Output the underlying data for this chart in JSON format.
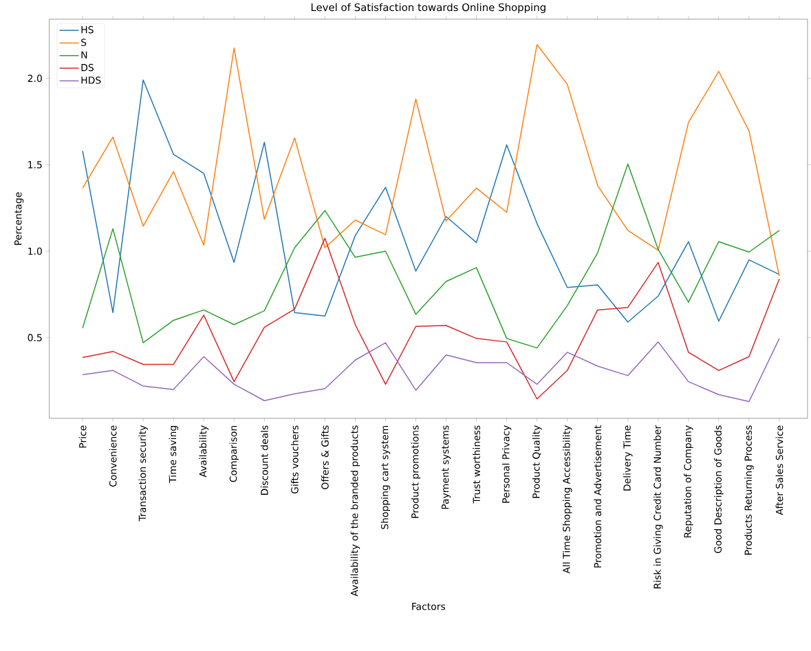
{
  "chart_data": {
    "type": "line",
    "title": "Level of Satisfaction towards Online Shopping",
    "xlabel": "Factors",
    "ylabel": "Percentage",
    "categories": [
      "Price",
      "Convenience",
      "Transaction security",
      "Time saving",
      "Availability",
      "Comparison",
      "Discount deals",
      "Gifts vouchers",
      "Offers & Gifts",
      "Availability of the branded products",
      "Shopping cart system",
      "Product promotions",
      "Payment systems",
      "Trust worthiness",
      "Personal Privacy",
      "Product Quality",
      "All Time Shopping Accessibility",
      "Promotion and Advertisement",
      "Delivery Time",
      "Risk in Giving Credit Card Number",
      "Reputation of Company",
      "Good Description of Goods",
      "Products Returning Process",
      "After Sales Service"
    ],
    "series": [
      {
        "name": "HS",
        "color": "#1f77b4",
        "values": [
          1.58,
          0.645,
          1.99,
          1.56,
          1.45,
          0.935,
          1.63,
          0.645,
          0.625,
          1.09,
          1.37,
          0.885,
          1.2,
          1.05,
          1.615,
          1.16,
          0.79,
          0.805,
          0.59,
          0.74,
          1.055,
          0.595,
          0.95,
          0.865
        ]
      },
      {
        "name": "S",
        "color": "#ff7f0e",
        "values": [
          1.365,
          1.66,
          1.145,
          1.46,
          1.035,
          2.175,
          1.185,
          1.655,
          1.02,
          1.18,
          1.095,
          1.88,
          1.175,
          1.365,
          1.225,
          2.195,
          1.965,
          1.38,
          1.12,
          1.005,
          1.745,
          2.04,
          1.695,
          0.855
        ]
      },
      {
        "name": "N",
        "color": "#2ca02c",
        "values": [
          0.555,
          1.13,
          0.47,
          0.6,
          0.66,
          0.575,
          0.655,
          1.02,
          1.235,
          0.965,
          1.0,
          0.635,
          0.825,
          0.905,
          0.495,
          0.44,
          0.685,
          0.99,
          1.505,
          1.01,
          0.705,
          1.055,
          0.995,
          1.12
        ]
      },
      {
        "name": "DS",
        "color": "#d62728",
        "values": [
          0.385,
          0.42,
          0.345,
          0.345,
          0.63,
          0.245,
          0.56,
          0.665,
          1.075,
          0.575,
          0.23,
          0.565,
          0.57,
          0.495,
          0.475,
          0.145,
          0.31,
          0.66,
          0.675,
          0.935,
          0.415,
          0.31,
          0.39,
          0.84
        ]
      },
      {
        "name": "HDS",
        "color": "#9467bd",
        "values": [
          0.285,
          0.31,
          0.22,
          0.2,
          0.39,
          0.23,
          0.135,
          0.175,
          0.205,
          0.37,
          0.47,
          0.195,
          0.4,
          0.355,
          0.355,
          0.23,
          0.415,
          0.335,
          0.28,
          0.475,
          0.245,
          0.17,
          0.13,
          0.495
        ]
      }
    ],
    "ylim": [
      0.033,
      2.342
    ],
    "yticks": [
      {
        "value": 0.5,
        "label": "0.5"
      },
      {
        "value": 1.0,
        "label": "1.0"
      },
      {
        "value": 1.5,
        "label": "1.5"
      },
      {
        "value": 2.0,
        "label": "2.0"
      }
    ],
    "legend": "top left",
    "grid": false,
    "line_style": "solid",
    "marker": "none"
  }
}
